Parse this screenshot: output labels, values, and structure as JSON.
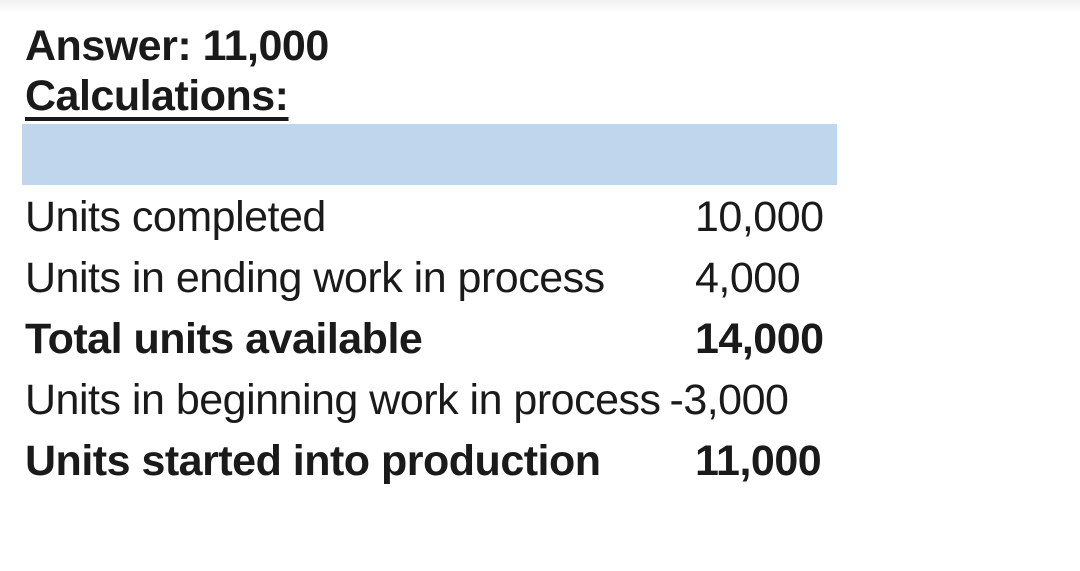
{
  "header": {
    "answer": "Answer: 11,000",
    "calculations": "Calculations:"
  },
  "table": {
    "highlighted_empty_row": true,
    "rows": [
      {
        "label": "Units completed",
        "amount": "10,000",
        "bold": false
      },
      {
        "label": "Units in ending work in process",
        "amount": "4,000",
        "bold": false
      },
      {
        "label": "Total units available",
        "amount": "14,000",
        "bold": true
      },
      {
        "label": "Units in beginning work in process",
        "amount": "-3,000",
        "bold": false
      },
      {
        "label": "Units started into production",
        "amount": "11,000",
        "bold": true
      }
    ]
  },
  "colors": {
    "highlight": "#bfd6ec",
    "text": "#1a1a1a"
  }
}
